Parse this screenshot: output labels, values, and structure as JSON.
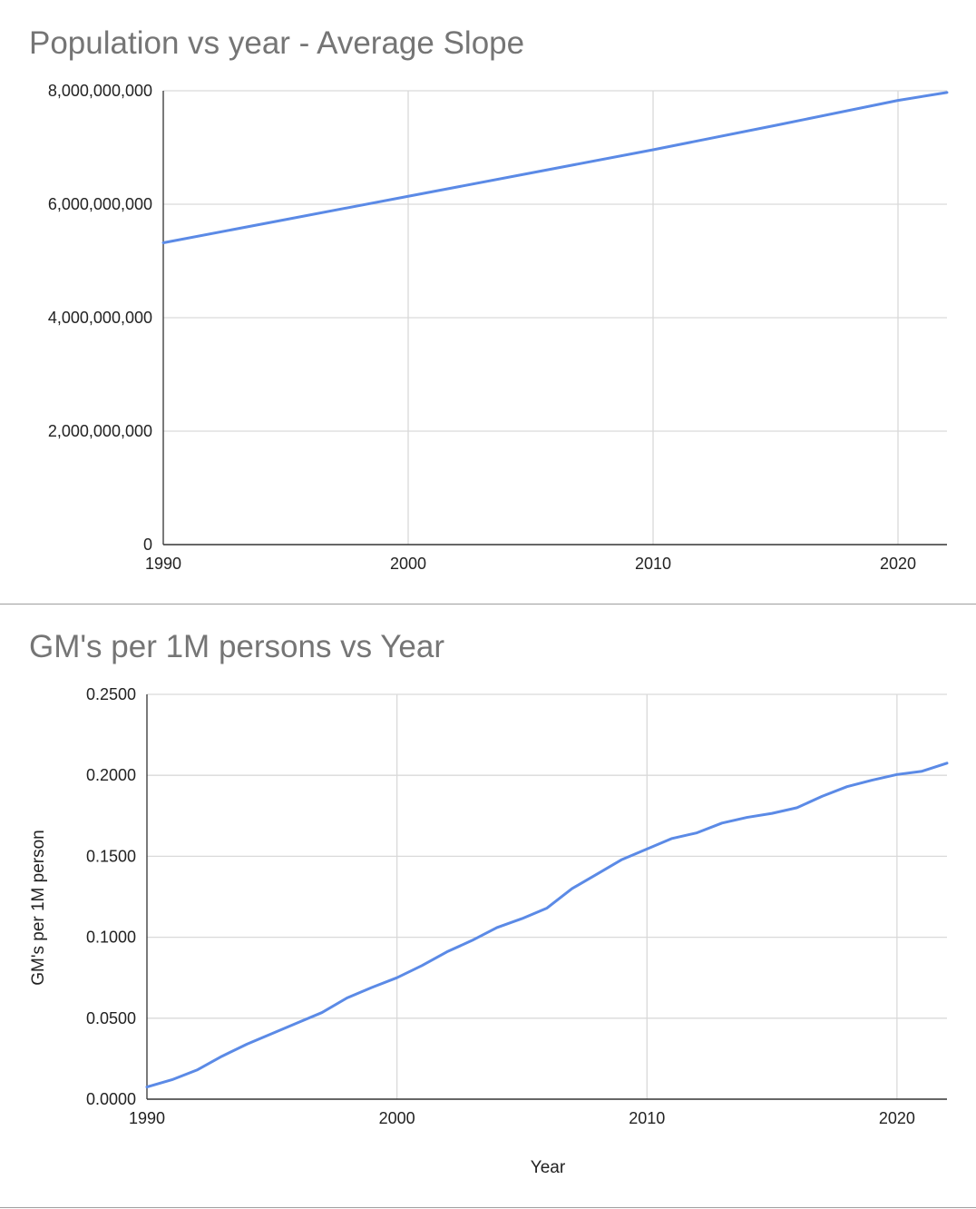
{
  "chart_data": [
    {
      "type": "line",
      "title": "Population vs year - Average Slope",
      "xlabel": "",
      "ylabel": "",
      "xlim": [
        1990,
        2022
      ],
      "ylim": [
        0,
        8000000000
      ],
      "x_ticks": [
        1990,
        2000,
        2010,
        2020
      ],
      "x_tick_labels": [
        "1990",
        "2000",
        "2010",
        "2020"
      ],
      "y_ticks": [
        0,
        2000000000,
        4000000000,
        6000000000,
        8000000000
      ],
      "y_tick_labels": [
        "0",
        "2,000,000,000",
        "4,000,000,000",
        "6,000,000,000",
        "8,000,000,000"
      ],
      "grid": true,
      "line_color": "#5b8ae6",
      "series": [
        {
          "x": [
            1990,
            1995,
            2000,
            2005,
            2010,
            2015,
            2020,
            2022
          ],
          "values": [
            5320000000,
            5730000000,
            6140000000,
            6550000000,
            6960000000,
            7390000000,
            7830000000,
            7970000000
          ]
        }
      ]
    },
    {
      "type": "line",
      "title": "GM's per 1M persons vs Year",
      "xlabel": "Year",
      "ylabel": "GM's per 1M person",
      "xlim": [
        1990,
        2022
      ],
      "ylim": [
        0,
        0.25
      ],
      "x_ticks": [
        1990,
        2000,
        2010,
        2020
      ],
      "x_tick_labels": [
        "1990",
        "2000",
        "2010",
        "2020"
      ],
      "y_ticks": [
        0,
        0.05,
        0.1,
        0.15,
        0.2,
        0.25
      ],
      "y_tick_labels": [
        "0.0000",
        "0.0500",
        "0.1000",
        "0.1500",
        "0.2000",
        "0.2500"
      ],
      "grid": true,
      "line_color": "#5b8ae6",
      "series": [
        {
          "x": [
            1990,
            1991,
            1992,
            1993,
            1994,
            1995,
            1996,
            1997,
            1998,
            1999,
            2000,
            2001,
            2002,
            2003,
            2004,
            2005,
            2006,
            2007,
            2008,
            2009,
            2010,
            2011,
            2012,
            2013,
            2014,
            2015,
            2016,
            2017,
            2018,
            2019,
            2020,
            2021,
            2022
          ],
          "values": [
            0.0075,
            0.012,
            0.018,
            0.0265,
            0.034,
            0.0405,
            0.047,
            0.0535,
            0.0625,
            0.069,
            0.075,
            0.0825,
            0.091,
            0.098,
            0.106,
            0.1115,
            0.118,
            0.13,
            0.139,
            0.148,
            0.1545,
            0.161,
            0.1645,
            0.1705,
            0.174,
            0.1765,
            0.18,
            0.187,
            0.193,
            0.197,
            0.2005,
            0.2025,
            0.2075
          ]
        }
      ]
    }
  ]
}
